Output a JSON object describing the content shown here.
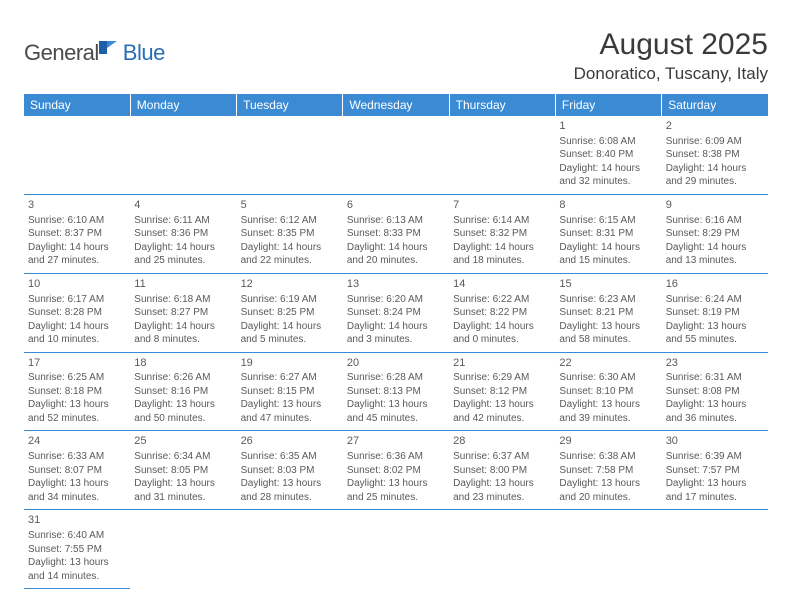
{
  "brand": {
    "part1": "General",
    "part2": "Blue"
  },
  "title": {
    "month": "August 2025",
    "location": "Donoratico, Tuscany, Italy"
  },
  "colors": {
    "header_bg": "#3b8bd4",
    "header_fg": "#ffffff",
    "rule": "#3b8bd4",
    "text": "#5a5a5a",
    "brand_blue": "#2a6db5",
    "brand_gray": "#4a4a4a"
  },
  "weekdays": [
    "Sunday",
    "Monday",
    "Tuesday",
    "Wednesday",
    "Thursday",
    "Friday",
    "Saturday"
  ],
  "weeks": [
    [
      null,
      null,
      null,
      null,
      null,
      {
        "n": "1",
        "sunrise": "6:08 AM",
        "sunset": "8:40 PM",
        "dl": "14 hours and 32 minutes."
      },
      {
        "n": "2",
        "sunrise": "6:09 AM",
        "sunset": "8:38 PM",
        "dl": "14 hours and 29 minutes."
      }
    ],
    [
      {
        "n": "3",
        "sunrise": "6:10 AM",
        "sunset": "8:37 PM",
        "dl": "14 hours and 27 minutes."
      },
      {
        "n": "4",
        "sunrise": "6:11 AM",
        "sunset": "8:36 PM",
        "dl": "14 hours and 25 minutes."
      },
      {
        "n": "5",
        "sunrise": "6:12 AM",
        "sunset": "8:35 PM",
        "dl": "14 hours and 22 minutes."
      },
      {
        "n": "6",
        "sunrise": "6:13 AM",
        "sunset": "8:33 PM",
        "dl": "14 hours and 20 minutes."
      },
      {
        "n": "7",
        "sunrise": "6:14 AM",
        "sunset": "8:32 PM",
        "dl": "14 hours and 18 minutes."
      },
      {
        "n": "8",
        "sunrise": "6:15 AM",
        "sunset": "8:31 PM",
        "dl": "14 hours and 15 minutes."
      },
      {
        "n": "9",
        "sunrise": "6:16 AM",
        "sunset": "8:29 PM",
        "dl": "14 hours and 13 minutes."
      }
    ],
    [
      {
        "n": "10",
        "sunrise": "6:17 AM",
        "sunset": "8:28 PM",
        "dl": "14 hours and 10 minutes."
      },
      {
        "n": "11",
        "sunrise": "6:18 AM",
        "sunset": "8:27 PM",
        "dl": "14 hours and 8 minutes."
      },
      {
        "n": "12",
        "sunrise": "6:19 AM",
        "sunset": "8:25 PM",
        "dl": "14 hours and 5 minutes."
      },
      {
        "n": "13",
        "sunrise": "6:20 AM",
        "sunset": "8:24 PM",
        "dl": "14 hours and 3 minutes."
      },
      {
        "n": "14",
        "sunrise": "6:22 AM",
        "sunset": "8:22 PM",
        "dl": "14 hours and 0 minutes."
      },
      {
        "n": "15",
        "sunrise": "6:23 AM",
        "sunset": "8:21 PM",
        "dl": "13 hours and 58 minutes."
      },
      {
        "n": "16",
        "sunrise": "6:24 AM",
        "sunset": "8:19 PM",
        "dl": "13 hours and 55 minutes."
      }
    ],
    [
      {
        "n": "17",
        "sunrise": "6:25 AM",
        "sunset": "8:18 PM",
        "dl": "13 hours and 52 minutes."
      },
      {
        "n": "18",
        "sunrise": "6:26 AM",
        "sunset": "8:16 PM",
        "dl": "13 hours and 50 minutes."
      },
      {
        "n": "19",
        "sunrise": "6:27 AM",
        "sunset": "8:15 PM",
        "dl": "13 hours and 47 minutes."
      },
      {
        "n": "20",
        "sunrise": "6:28 AM",
        "sunset": "8:13 PM",
        "dl": "13 hours and 45 minutes."
      },
      {
        "n": "21",
        "sunrise": "6:29 AM",
        "sunset": "8:12 PM",
        "dl": "13 hours and 42 minutes."
      },
      {
        "n": "22",
        "sunrise": "6:30 AM",
        "sunset": "8:10 PM",
        "dl": "13 hours and 39 minutes."
      },
      {
        "n": "23",
        "sunrise": "6:31 AM",
        "sunset": "8:08 PM",
        "dl": "13 hours and 36 minutes."
      }
    ],
    [
      {
        "n": "24",
        "sunrise": "6:33 AM",
        "sunset": "8:07 PM",
        "dl": "13 hours and 34 minutes."
      },
      {
        "n": "25",
        "sunrise": "6:34 AM",
        "sunset": "8:05 PM",
        "dl": "13 hours and 31 minutes."
      },
      {
        "n": "26",
        "sunrise": "6:35 AM",
        "sunset": "8:03 PM",
        "dl": "13 hours and 28 minutes."
      },
      {
        "n": "27",
        "sunrise": "6:36 AM",
        "sunset": "8:02 PM",
        "dl": "13 hours and 25 minutes."
      },
      {
        "n": "28",
        "sunrise": "6:37 AM",
        "sunset": "8:00 PM",
        "dl": "13 hours and 23 minutes."
      },
      {
        "n": "29",
        "sunrise": "6:38 AM",
        "sunset": "7:58 PM",
        "dl": "13 hours and 20 minutes."
      },
      {
        "n": "30",
        "sunrise": "6:39 AM",
        "sunset": "7:57 PM",
        "dl": "13 hours and 17 minutes."
      }
    ],
    [
      {
        "n": "31",
        "sunrise": "6:40 AM",
        "sunset": "7:55 PM",
        "dl": "13 hours and 14 minutes."
      },
      null,
      null,
      null,
      null,
      null,
      null
    ]
  ],
  "labels": {
    "sunrise": "Sunrise:",
    "sunset": "Sunset:",
    "daylight": "Daylight:"
  }
}
